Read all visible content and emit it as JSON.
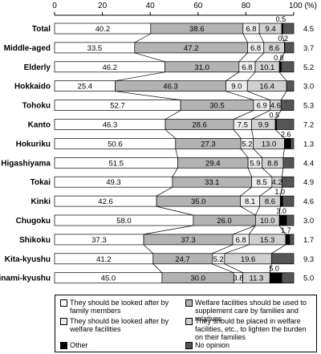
{
  "chart_data": {
    "type": "bar",
    "orientation": "horizontal",
    "stacked": true,
    "percent_stacked": true,
    "xlim": [
      0,
      100
    ],
    "x_ticks": [
      "0",
      "20",
      "40",
      "60",
      "80",
      "100 (%)"
    ],
    "grid": false,
    "legend_position": "bottom",
    "categories": [
      "Total",
      "Middle-aged",
      "Elderly",
      "Hokkaido",
      "Tohoku",
      "Kanto",
      "Hokuriku",
      "Higashiyama",
      "Tokai",
      "Kinki",
      "Chugoku",
      "Shikoku",
      "Kita-kyushu",
      "Minami-kyushu"
    ],
    "series": [
      {
        "name": "They should be looked after by family members",
        "color": "#ffffff",
        "values": [
          40.2,
          33.5,
          46.2,
          25.4,
          52.7,
          46.3,
          50.6,
          51.5,
          49.3,
          42.6,
          58.0,
          37.3,
          41.2,
          45.0
        ]
      },
      {
        "name": "Welfare facilities should be used to supplement care by families and relatives",
        "color": "#b3b3b3",
        "values": [
          38.6,
          47.2,
          31.0,
          46.3,
          30.5,
          28.6,
          27.3,
          29.4,
          33.1,
          35.0,
          26.0,
          37.3,
          24.7,
          30.0
        ]
      },
      {
        "name": "They should be looked after by welfare facilities",
        "color": "#ededed",
        "values": [
          6.8,
          6.8,
          6.8,
          9.0,
          6.9,
          7.5,
          5.2,
          5.9,
          8.5,
          8.1,
          0.0,
          6.8,
          5.2,
          3.8
        ]
      },
      {
        "name": "They should be placed in welfare facilities, etc., to lighten the burden on their families",
        "color": "#d0d0d0",
        "values": [
          9.4,
          8.6,
          10.1,
          16.4,
          4.6,
          9.9,
          13.0,
          8.8,
          4.2,
          8.6,
          10.0,
          15.3,
          19.6,
          11.3
        ]
      },
      {
        "name": "Other",
        "color": "#000000",
        "values": [
          0.5,
          0.2,
          0.8,
          0.0,
          0.0,
          0.5,
          2.6,
          0.0,
          0.0,
          1.0,
          3.0,
          1.7,
          0.0,
          5.0
        ]
      },
      {
        "name": "No opinion",
        "color": "#555555",
        "values": [
          4.5,
          3.7,
          5.2,
          3.0,
          5.3,
          7.2,
          1.3,
          4.4,
          4.9,
          4.6,
          3.0,
          1.7,
          9.3,
          5.0
        ]
      }
    ],
    "data_labels": {
      "Total": [
        "40.2",
        "38.6",
        "6.8",
        "9.4",
        "0.5",
        "4.5"
      ],
      "Middle-aged": [
        "33.5",
        "47.2",
        "6.8",
        "8.6",
        "0.2",
        "3.7"
      ],
      "Elderly": [
        "46.2",
        "31.0",
        "6.8",
        "10.1",
        "0.8",
        "5.2"
      ],
      "Hokkaido": [
        "25.4",
        "46.3",
        "9.0",
        "16.4",
        "",
        "3.0"
      ],
      "Tohoku": [
        "52.7",
        "30.5",
        "6.9",
        "4.6",
        "",
        "5.3"
      ],
      "Kanto": [
        "46.3",
        "28.6",
        "7.5",
        "9.9",
        "0.5",
        "7.2"
      ],
      "Hokuriku": [
        "50.6",
        "27.3",
        "5.2",
        "13.0",
        "2.6",
        "1.3"
      ],
      "Higashiyama": [
        "51.5",
        "29.4",
        "5.9",
        "8.8",
        "",
        "4.4"
      ],
      "Tokai": [
        "49.3",
        "33.1",
        "8.5",
        "4.2",
        "",
        "4.9"
      ],
      "Kinki": [
        "42.6",
        "35.0",
        "8.1",
        "8.6",
        "1.0",
        "4.6"
      ],
      "Chugoku": [
        "58.0",
        "26.0",
        "",
        "10.0",
        "3.0",
        "3.0"
      ],
      "Shikoku": [
        "37.3",
        "37.3",
        "6.8",
        "15.3",
        "1.7",
        "1.7"
      ],
      "Kita-kyushu": [
        "41.2",
        "24.7",
        "5.2",
        "19.6",
        "",
        "9.3"
      ],
      "Minami-kyushu": [
        "45.0",
        "30.0",
        "3.8",
        "11.3",
        "5.0",
        "5.0"
      ]
    }
  }
}
